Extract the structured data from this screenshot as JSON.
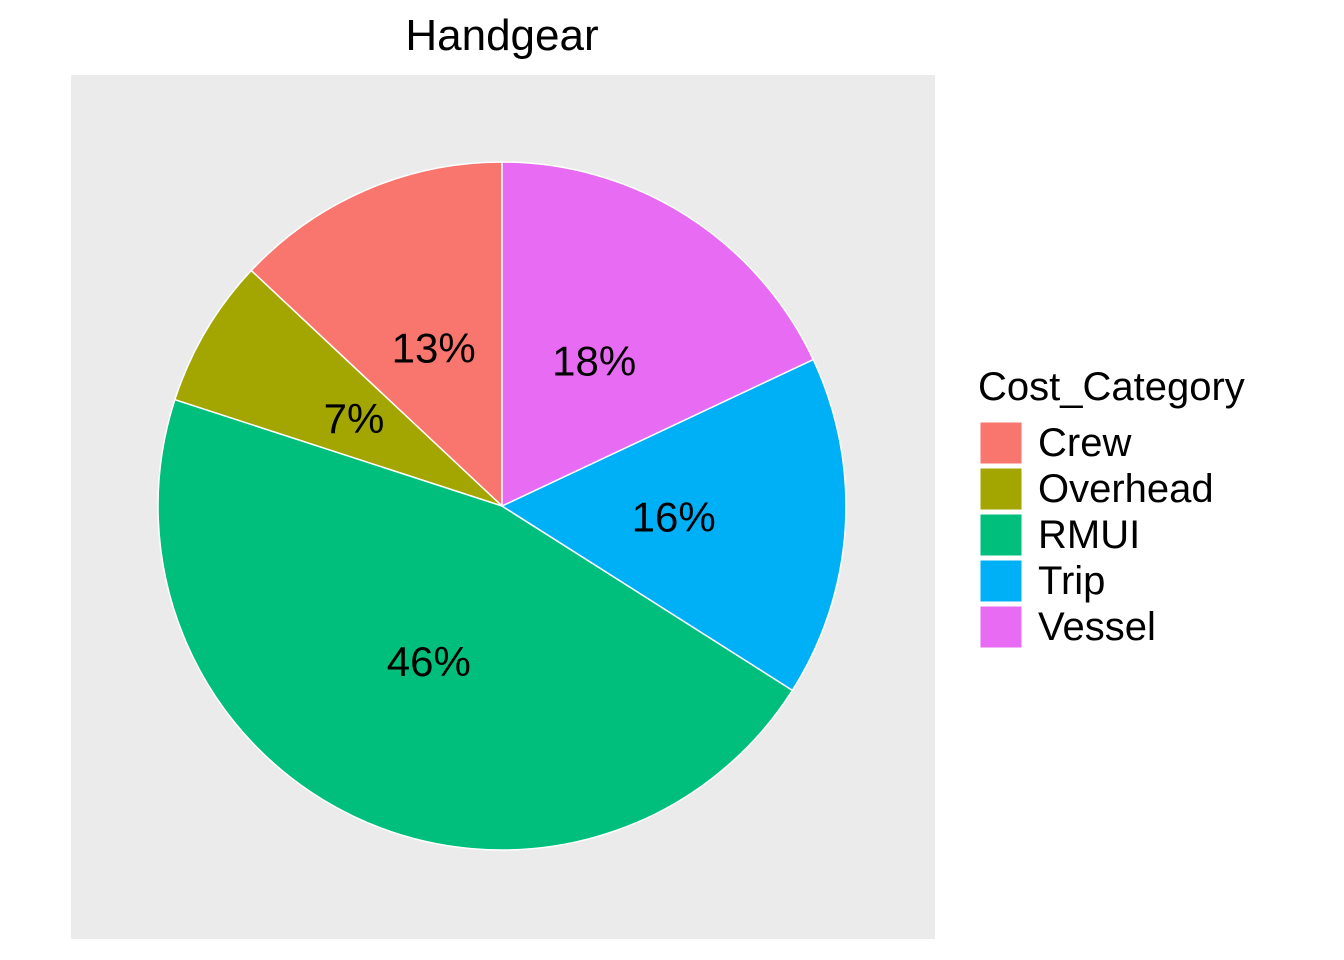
{
  "chart_data": {
    "type": "pie",
    "title": "Handgear",
    "legend": {
      "title": "Cost_Category",
      "position": "right"
    },
    "start_angle_deg": 0,
    "direction": "counter-clockwise",
    "categories": [
      "Crew",
      "Overhead",
      "RMUI",
      "Trip",
      "Vessel"
    ],
    "values": [
      13,
      7,
      46,
      16,
      18
    ],
    "labels": [
      "13%",
      "7%",
      "46%",
      "16%",
      "18%"
    ],
    "colors": [
      "#F8766D",
      "#A3A500",
      "#00BF7D",
      "#00B0F6",
      "#E76BF3"
    ],
    "panel_background": "#EBEBEB",
    "slice_border": "#FFFFFF"
  }
}
